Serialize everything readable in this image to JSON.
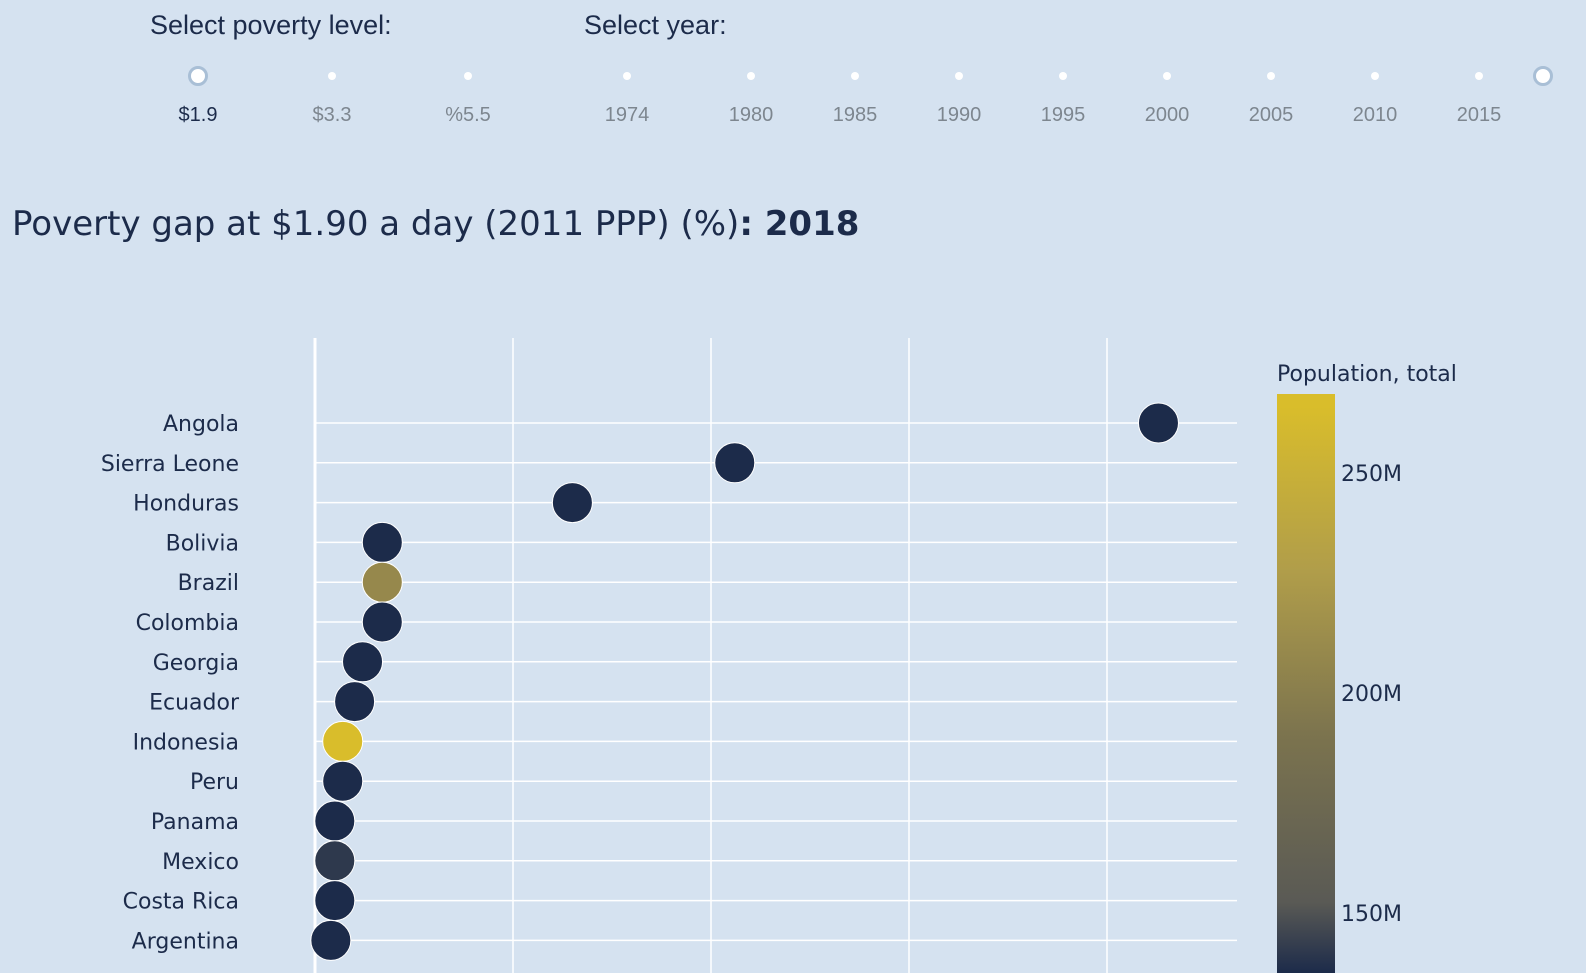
{
  "controls": {
    "poverty_label": "Select poverty level:",
    "year_label": "Select year:",
    "poverty_levels": [
      "$1.9",
      "$3.3",
      "%5.5"
    ],
    "poverty_selected": 0,
    "years": [
      "1974",
      "1980",
      "1985",
      "1990",
      "1995",
      "2000",
      "2005",
      "2010",
      "2015"
    ],
    "year_selected": "2018"
  },
  "title": {
    "main": "Poverty gap at $1.90 a day (2011 PPP) (%)",
    "separator": ": ",
    "year": "2018"
  },
  "chart_data": {
    "type": "scatter",
    "categories": [
      "Angola",
      "Sierra Leone",
      "Honduras",
      "Bolivia",
      "Brazil",
      "Colombia",
      "Georgia",
      "Ecuador",
      "Indonesia",
      "Peru",
      "Panama",
      "Mexico",
      "Costa Rica",
      "Argentina"
    ],
    "x": [
      21.3,
      10.6,
      6.5,
      1.7,
      1.7,
      1.7,
      1.2,
      1.0,
      0.7,
      0.7,
      0.5,
      0.5,
      0.5,
      0.4
    ],
    "population_millions": [
      31,
      7.8,
      9.6,
      11.4,
      209,
      49.7,
      3.7,
      17.1,
      267,
      32,
      4.2,
      126,
      5.0,
      44.5
    ],
    "xlim": [
      0,
      23.3
    ],
    "grid": true,
    "colorbar": {
      "title": "Population, total",
      "ticks": [
        "250M",
        "200M",
        "150M"
      ],
      "tick_values": [
        250,
        200,
        150
      ],
      "range": [
        115,
        265
      ],
      "colorscale": [
        "#1c2b4a",
        "#5a5a55",
        "#7b734e",
        "#b09d4a",
        "#d9bd2b"
      ]
    },
    "marker_colors": {
      "low": "#1c2b4a",
      "high": "#d9bd2b"
    }
  }
}
